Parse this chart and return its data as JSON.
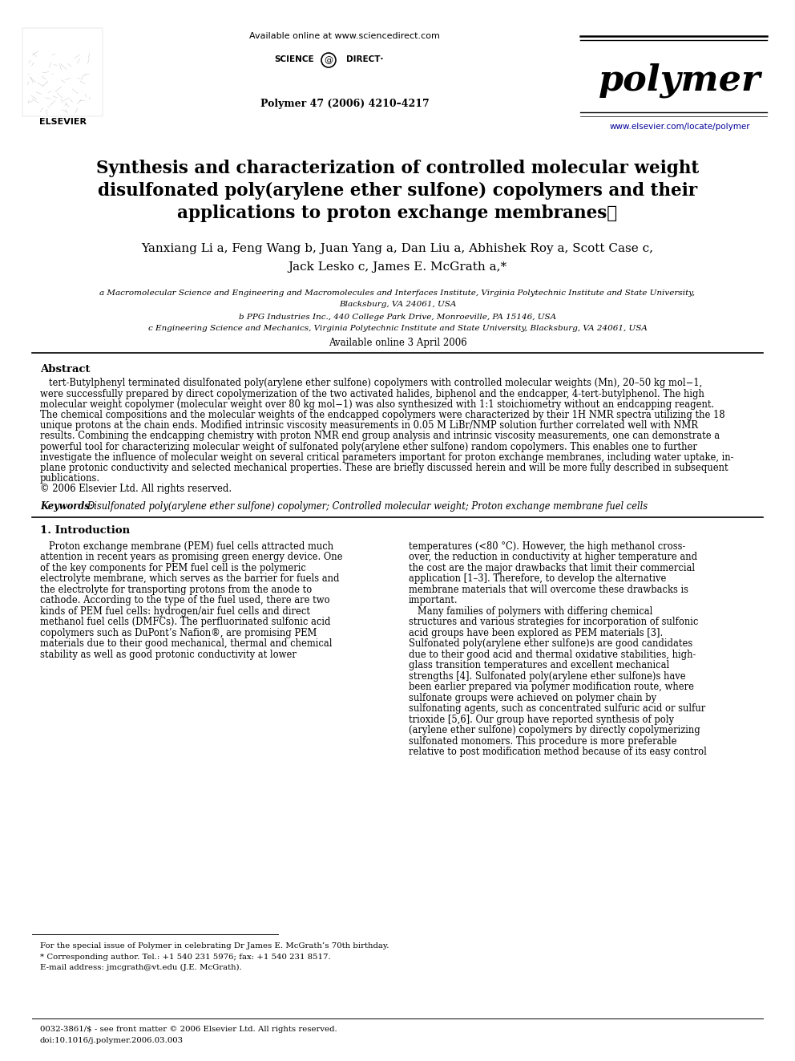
{
  "bg_color": "#ffffff",
  "header_available": "Available online at www.sciencedirect.com",
  "header_sciencedirect": "SCIENCE ⓓ DIRECT·",
  "journal_ref": "Polymer 47 (2006) 4210–4217",
  "journal_name": "polymer",
  "journal_url": "www.elsevier.com/locate/polymer",
  "title_line1": "Synthesis and characterization of controlled molecular weight",
  "title_line2": "disulfonated poly(arylene ether sulfone) copolymers and their",
  "title_line3": "applications to proton exchange membranes★",
  "authors_line1": "Yanxiang Li a, Feng Wang b, Juan Yang a, Dan Liu a, Abhishek Roy a, Scott Case c,",
  "authors_line2": "Jack Lesko c, James E. McGrath a,*",
  "affil_a": "a Macromolecular Science and Engineering and Macromolecules and Interfaces Institute, Virginia Polytechnic Institute and State University,",
  "affil_a2": "Blacksburg, VA 24061, USA",
  "affil_b": "b PPG Industries Inc., 440 College Park Drive, Monroeville, PA 15146, USA",
  "affil_c": "c Engineering Science and Mechanics, Virginia Polytechnic Institute and State University, Blacksburg, VA 24061, USA",
  "available_date": "Available online 3 April 2006",
  "abstract_title": "Abstract",
  "abstract_lines": [
    "   tert-Butylphenyl terminated disulfonated poly(arylene ether sulfone) copolymers with controlled molecular weights (Mn), 20–50 kg mol−1,",
    "were successfully prepared by direct copolymerization of the two activated halides, biphenol and the endcapper, 4-tert-butylphenol. The high",
    "molecular weight copolymer (molecular weight over 80 kg mol−1) was also synthesized with 1:1 stoichiometry without an endcapping reagent.",
    "The chemical compositions and the molecular weights of the endcapped copolymers were characterized by their 1H NMR spectra utilizing the 18",
    "unique protons at the chain ends. Modified intrinsic viscosity measurements in 0.05 M LiBr/NMP solution further correlated well with NMR",
    "results. Combining the endcapping chemistry with proton NMR end group analysis and intrinsic viscosity measurements, one can demonstrate a",
    "powerful tool for characterizing molecular weight of sulfonated poly(arylene ether sulfone) random copolymers. This enables one to further",
    "investigate the influence of molecular weight on several critical parameters important for proton exchange membranes, including water uptake, in-",
    "plane protonic conductivity and selected mechanical properties. These are briefly discussed herein and will be more fully described in subsequent",
    "publications.",
    "© 2006 Elsevier Ltd. All rights reserved."
  ],
  "keywords_label": "Keywords: ",
  "keywords_text": "Disulfonated poly(arylene ether sulfone) copolymer; Controlled molecular weight; Proton exchange membrane fuel cells",
  "section1": "1. Introduction",
  "intro1_lines": [
    "   Proton exchange membrane (PEM) fuel cells attracted much",
    "attention in recent years as promising green energy device. One",
    "of the key components for PEM fuel cell is the polymeric",
    "electrolyte membrane, which serves as the barrier for fuels and",
    "the electrolyte for transporting protons from the anode to",
    "cathode. According to the type of the fuel used, there are two",
    "kinds of PEM fuel cells: hydrogen/air fuel cells and direct",
    "methanol fuel cells (DMFCs). The perfluorinated sulfonic acid",
    "copolymers such as DuPont’s Nafion®, are promising PEM",
    "materials due to their good mechanical, thermal and chemical",
    "stability as well as good protonic conductivity at lower"
  ],
  "intro2_lines": [
    "temperatures (<80 °C). However, the high methanol cross-",
    "over, the reduction in conductivity at higher temperature and",
    "the cost are the major drawbacks that limit their commercial",
    "application [1–3]. Therefore, to develop the alternative",
    "membrane materials that will overcome these drawbacks is",
    "important.",
    "   Many families of polymers with differing chemical",
    "structures and various strategies for incorporation of sulfonic",
    "acid groups have been explored as PEM materials [3].",
    "Sulfonated poly(arylene ether sulfone)s are good candidates",
    "due to their good acid and thermal oxidative stabilities, high-",
    "glass transition temperatures and excellent mechanical",
    "strengths [4]. Sulfonated poly(arylene ether sulfone)s have",
    "been earlier prepared via polymer modification route, where",
    "sulfonate groups were achieved on polymer chain by",
    "sulfonating agents, such as concentrated sulfuric acid or sulfur",
    "trioxide [5,6]. Our group have reported synthesis of poly",
    "(arylene ether sulfone) copolymers by directly copolymerizing",
    "sulfonated monomers. This procedure is more preferable",
    "relative to post modification method because of its easy control"
  ],
  "footnote_line": "For the special issue of Polymer in celebrating Dr James E. McGrath’s 70th birthday.",
  "footnote2": "* Corresponding author. Tel.: +1 540 231 5976; fax: +1 540 231 8517.",
  "footnote3": "E-mail address: jmcgrath@vt.edu (J.E. McGrath).",
  "footer1": "0032-3861/$ - see front matter © 2006 Elsevier Ltd. All rights reserved.",
  "footer2": "doi:10.1016/j.polymer.2006.03.003"
}
